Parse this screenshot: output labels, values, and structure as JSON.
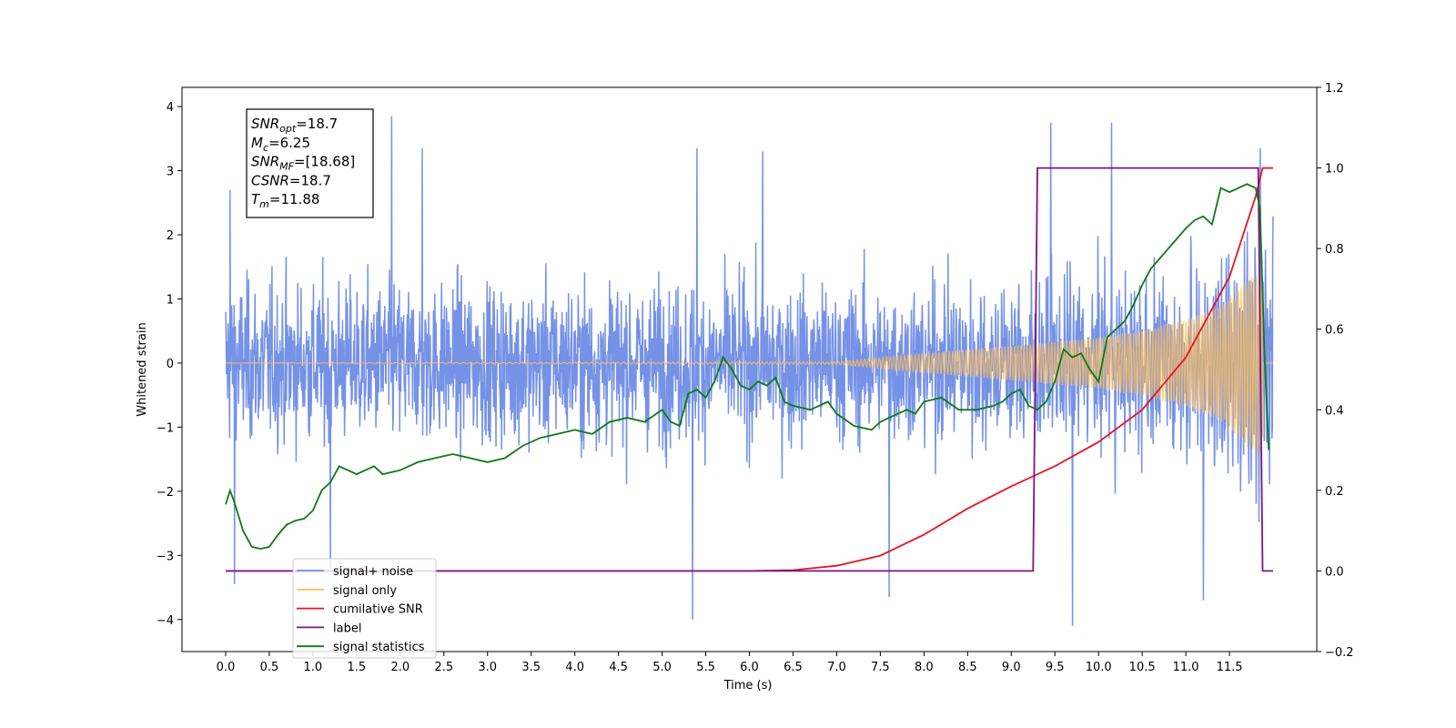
{
  "chart_data": {
    "type": "line",
    "xlabel": "Time (s)",
    "ylabel": "Whitened strain",
    "xlim": [
      -0.5,
      12.5
    ],
    "ylim": [
      -4.5,
      4.3
    ],
    "y2lim": [
      -0.2,
      1.2
    ],
    "x_ticks": [
      "0.0",
      "0.5",
      "1.0",
      "1.5",
      "2.0",
      "2.5",
      "3.0",
      "3.5",
      "4.0",
      "4.5",
      "5.0",
      "5.5",
      "6.0",
      "6.5",
      "7.0",
      "7.5",
      "8.0",
      "8.5",
      "9.0",
      "9.5",
      "10.0",
      "10.5",
      "11.0",
      "11.5"
    ],
    "y_ticks": [
      "4",
      "3",
      "2",
      "1",
      "0",
      "−1",
      "−2",
      "−3",
      "−4"
    ],
    "y2_ticks": [
      "1.2",
      "1.0",
      "0.8",
      "0.6",
      "0.4",
      "0.2",
      "0.0",
      "−0.2"
    ],
    "annotation_box": {
      "lines": [
        {
          "sym": "SNR",
          "sub": "opt",
          "val": "=18.7"
        },
        {
          "sym": "M",
          "sub": "c",
          "val": "=6.25"
        },
        {
          "sym": "SNR",
          "sub": "MF",
          "val": "=[18.68]"
        },
        {
          "sym": "CSNR",
          "sub": "",
          "val": "=18.7"
        },
        {
          "sym": "T",
          "sub": "m",
          "val": "=11.88"
        }
      ]
    },
    "legend_position": "lower-left",
    "series": [
      {
        "name": "signal+ noise",
        "axis": "left",
        "color": "#6e8ce6",
        "style": "noise band",
        "x_range": [
          0.0,
          12.0
        ],
        "envelope_y": [
          -2.7,
          2.7
        ],
        "peaks": [
          {
            "x": 0.05,
            "y": 2.7
          },
          {
            "x": 0.1,
            "y": -3.45
          },
          {
            "x": 1.9,
            "y": 3.85
          },
          {
            "x": 1.2,
            "y": -3.2
          },
          {
            "x": 2.25,
            "y": 3.35
          },
          {
            "x": 5.35,
            "y": -4.0
          },
          {
            "x": 5.4,
            "y": 3.35
          },
          {
            "x": 6.15,
            "y": 3.3
          },
          {
            "x": 7.6,
            "y": -3.65
          },
          {
            "x": 9.45,
            "y": 3.75
          },
          {
            "x": 9.7,
            "y": -4.1
          },
          {
            "x": 10.15,
            "y": 3.75
          },
          {
            "x": 11.2,
            "y": -3.7
          },
          {
            "x": 11.85,
            "y": 3.35
          }
        ]
      },
      {
        "name": "signal only",
        "axis": "left",
        "color": "#ffbe5a",
        "style": "chirp",
        "x_range": [
          0.0,
          12.0
        ],
        "envelope_x": [
          0.0,
          7.0,
          8.0,
          9.0,
          10.0,
          10.5,
          11.0,
          11.4,
          11.7,
          11.88
        ],
        "envelope_y": [
          0.0,
          0.02,
          0.15,
          0.27,
          0.4,
          0.52,
          0.68,
          0.9,
          1.3,
          1.5
        ]
      },
      {
        "name": "cumilative SNR",
        "axis": "right",
        "color": "#e8141e",
        "x": [
          0.0,
          6.0,
          6.5,
          7.0,
          7.5,
          8.0,
          8.5,
          9.0,
          9.5,
          10.0,
          10.5,
          11.0,
          11.5,
          11.8,
          11.88,
          12.0
        ],
        "y": [
          0.0,
          0.0,
          0.002,
          0.013,
          0.038,
          0.09,
          0.155,
          0.21,
          0.26,
          0.32,
          0.4,
          0.53,
          0.73,
          0.93,
          1.0,
          1.0
        ]
      },
      {
        "name": "label",
        "axis": "right",
        "color": "#7b1483",
        "x": [
          0.0,
          9.25,
          9.3,
          11.83,
          11.88,
          12.0
        ],
        "y": [
          0.0,
          0.0,
          1.0,
          1.0,
          0.0,
          0.0
        ]
      },
      {
        "name": "signal statistics",
        "axis": "right",
        "color": "#0e7a12",
        "x": [
          0.0,
          0.05,
          0.1,
          0.2,
          0.3,
          0.4,
          0.5,
          0.6,
          0.7,
          0.8,
          0.9,
          1.0,
          1.1,
          1.2,
          1.3,
          1.4,
          1.5,
          1.6,
          1.7,
          1.8,
          1.9,
          2.0,
          2.2,
          2.4,
          2.6,
          2.8,
          3.0,
          3.2,
          3.4,
          3.6,
          3.8,
          4.0,
          4.2,
          4.4,
          4.6,
          4.8,
          5.0,
          5.1,
          5.2,
          5.3,
          5.4,
          5.5,
          5.6,
          5.7,
          5.8,
          5.9,
          6.0,
          6.1,
          6.2,
          6.3,
          6.4,
          6.5,
          6.7,
          6.9,
          7.0,
          7.2,
          7.4,
          7.5,
          7.6,
          7.7,
          7.8,
          7.9,
          8.0,
          8.2,
          8.4,
          8.6,
          8.8,
          8.9,
          9.0,
          9.1,
          9.2,
          9.3,
          9.4,
          9.5,
          9.6,
          9.7,
          9.8,
          9.9,
          10.0,
          10.1,
          10.2,
          10.3,
          10.4,
          10.5,
          10.6,
          10.8,
          11.0,
          11.1,
          11.2,
          11.3,
          11.4,
          11.5,
          11.6,
          11.7,
          11.8,
          11.85,
          11.9,
          11.95
        ],
        "y": [
          0.165,
          0.2,
          0.17,
          0.1,
          0.06,
          0.055,
          0.06,
          0.09,
          0.115,
          0.125,
          0.13,
          0.15,
          0.2,
          0.22,
          0.26,
          0.25,
          0.24,
          0.25,
          0.26,
          0.24,
          0.245,
          0.25,
          0.27,
          0.28,
          0.29,
          0.28,
          0.27,
          0.28,
          0.31,
          0.33,
          0.34,
          0.35,
          0.34,
          0.37,
          0.38,
          0.37,
          0.4,
          0.37,
          0.36,
          0.44,
          0.45,
          0.43,
          0.47,
          0.53,
          0.5,
          0.46,
          0.45,
          0.47,
          0.46,
          0.48,
          0.42,
          0.41,
          0.4,
          0.42,
          0.39,
          0.36,
          0.35,
          0.37,
          0.38,
          0.39,
          0.4,
          0.39,
          0.42,
          0.43,
          0.4,
          0.4,
          0.41,
          0.42,
          0.44,
          0.45,
          0.41,
          0.4,
          0.42,
          0.47,
          0.55,
          0.53,
          0.54,
          0.5,
          0.47,
          0.58,
          0.6,
          0.62,
          0.66,
          0.71,
          0.75,
          0.8,
          0.85,
          0.87,
          0.88,
          0.86,
          0.95,
          0.94,
          0.95,
          0.96,
          0.95,
          0.9,
          0.55,
          0.3
        ]
      }
    ]
  }
}
